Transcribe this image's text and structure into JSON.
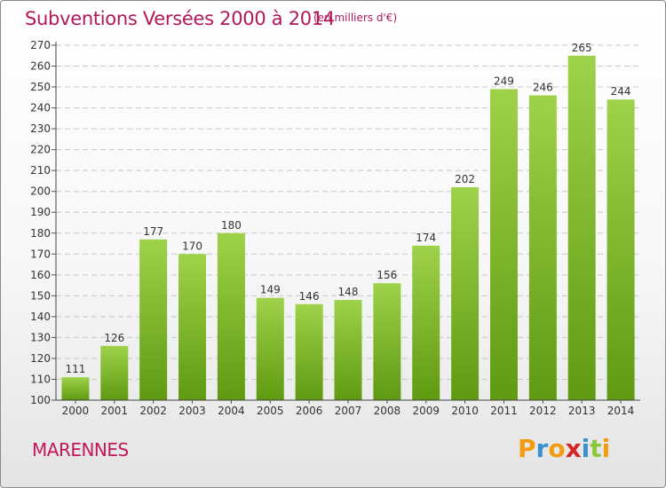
{
  "header": {
    "title": "Subventions Versées 2000 à 2014",
    "subtitle": "(en milliers d'€)"
  },
  "footer": {
    "commune": "MARENNES",
    "logo_letters": [
      "P",
      "r",
      "o",
      "x",
      "i",
      "t",
      "i"
    ],
    "logo_colors": [
      "#f39c12",
      "#3b8ed0",
      "#f39c12",
      "#d62728",
      "#3b8ed0",
      "#8cc63f",
      "#f39c12"
    ]
  },
  "colors": {
    "bar_top": "#9ed24a",
    "bar_bottom": "#5f9a12",
    "grid": "#c7c7c7",
    "title": "#b0185a"
  },
  "chart_data": {
    "type": "bar",
    "title": "Subventions Versées 2000 à 2014",
    "subtitle": "(en milliers d'€)",
    "xlabel": "",
    "ylabel": "",
    "categories": [
      "2000",
      "2001",
      "2002",
      "2003",
      "2004",
      "2005",
      "2006",
      "2007",
      "2008",
      "2009",
      "2010",
      "2011",
      "2012",
      "2013",
      "2014"
    ],
    "values": [
      111,
      126,
      177,
      170,
      180,
      149,
      146,
      148,
      156,
      174,
      202,
      249,
      246,
      265,
      244
    ],
    "ylim": [
      100,
      270
    ],
    "yticks": [
      100,
      110,
      120,
      130,
      140,
      150,
      160,
      170,
      180,
      190,
      200,
      210,
      220,
      230,
      240,
      250,
      260,
      270
    ],
    "grid": true,
    "data_labels": true
  }
}
